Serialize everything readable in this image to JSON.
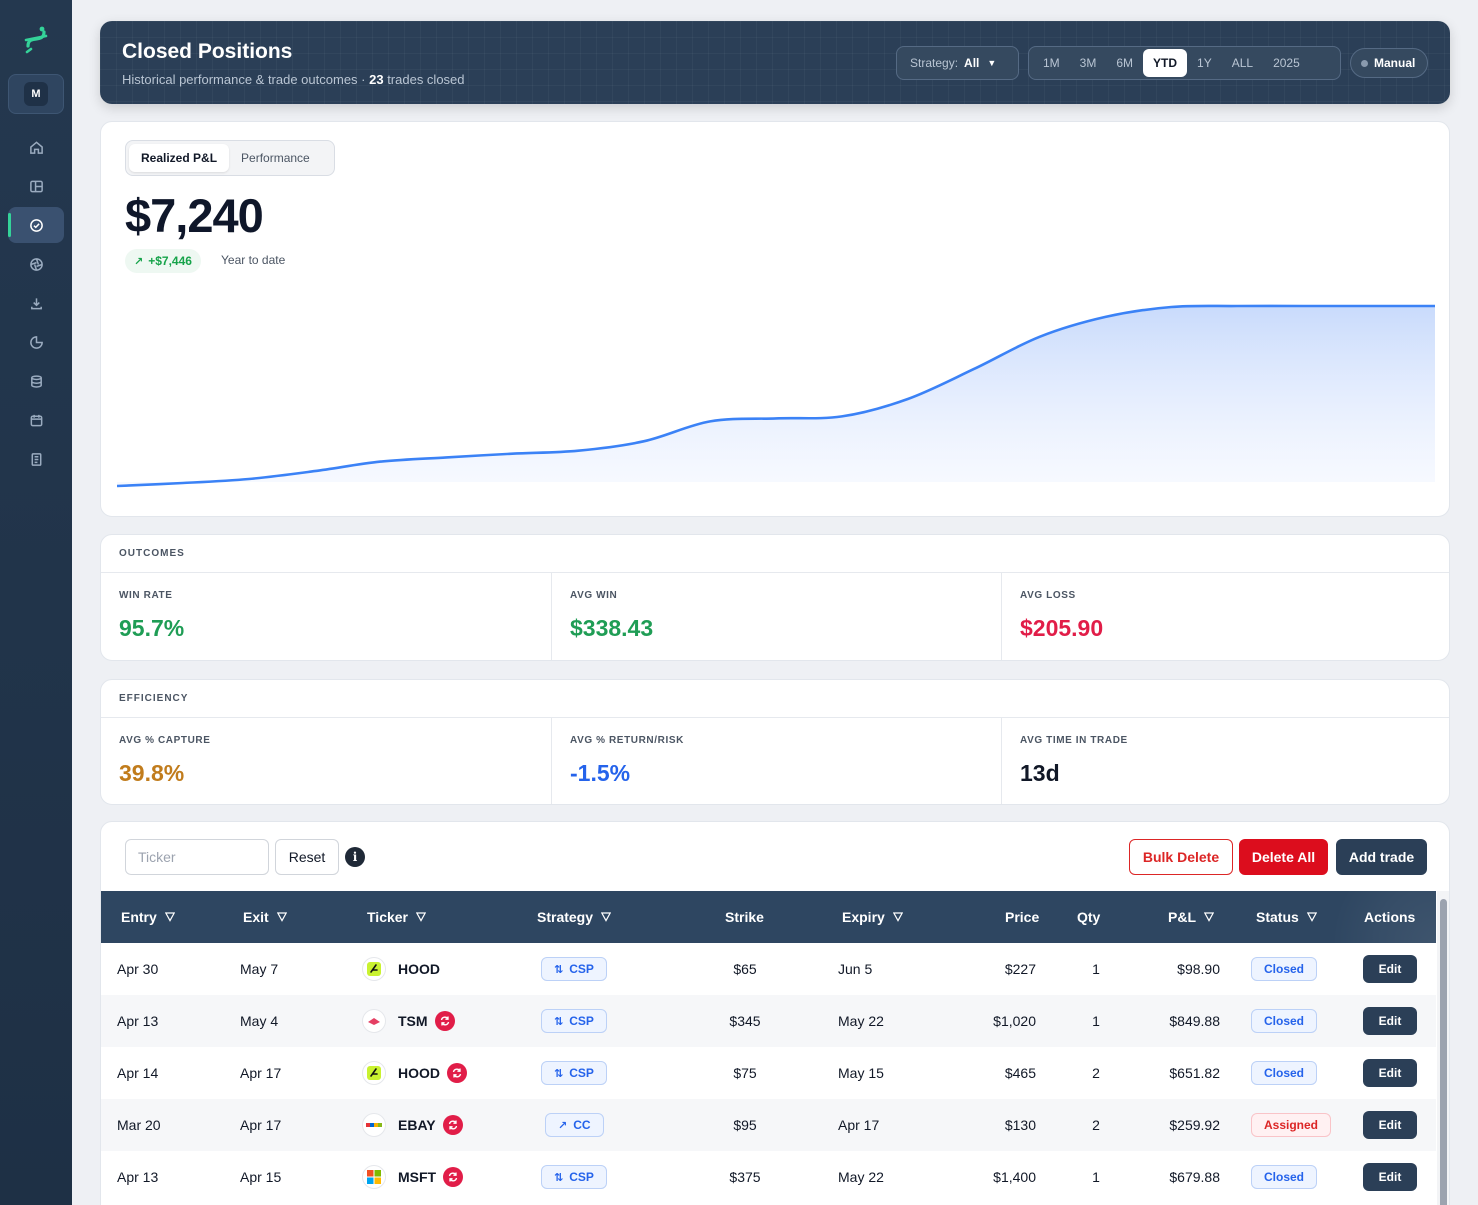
{
  "header": {
    "title": "Closed Positions",
    "subtitle_prefix": "Historical performance & trade outcomes · ",
    "trades_count": "23",
    "subtitle_suffix": " trades closed",
    "strategy_label": "Strategy:",
    "strategy_value": "All",
    "ranges": [
      "1M",
      "3M",
      "6M",
      "YTD",
      "1Y",
      "ALL",
      "2025"
    ],
    "active_range": "YTD",
    "manual_label": "Manual"
  },
  "chart_card": {
    "tabs": [
      "Realized P&L",
      "Performance"
    ],
    "active_tab": "Realized P&L",
    "value": "$7,240",
    "delta": "+$7,446",
    "period_label": "Year to date"
  },
  "chart_data": {
    "type": "area",
    "x": [
      0,
      5,
      10,
      15,
      20,
      25,
      30,
      35,
      40,
      45,
      50,
      55,
      60,
      65,
      70,
      75,
      80,
      85,
      90,
      95,
      100
    ],
    "values": [
      0,
      120,
      280,
      600,
      980,
      1150,
      1300,
      1420,
      1800,
      2600,
      2720,
      2800,
      3500,
      4700,
      6000,
      6800,
      7200,
      7240,
      7240,
      7240,
      7240
    ],
    "ylim": [
      0,
      7240
    ],
    "grid": false,
    "color": "#3b82f6"
  },
  "outcomes": {
    "title": "OUTCOMES",
    "metrics": [
      {
        "label": "WIN RATE",
        "value": "95.7%",
        "color": "#1f9d55"
      },
      {
        "label": "AVG WIN",
        "value": "$338.43",
        "color": "#1f9d55"
      },
      {
        "label": "AVG LOSS",
        "value": "$205.90",
        "color": "#e11d48"
      }
    ]
  },
  "efficiency": {
    "title": "EFFICIENCY",
    "metrics": [
      {
        "label": "AVG % CAPTURE",
        "value": "39.8%",
        "color": "#c17c1c"
      },
      {
        "label": "AVG % RETURN/RISK",
        "value": "-1.5%",
        "color": "#2563eb"
      },
      {
        "label": "AVG TIME IN TRADE",
        "value": "13d",
        "color": "#111827"
      }
    ]
  },
  "toolbar": {
    "ticker_placeholder": "Ticker",
    "reset_label": "Reset",
    "info_label": "i",
    "bulk_delete_label": "Bulk Delete",
    "delete_all_label": "Delete All",
    "add_trade_label": "Add trade"
  },
  "table": {
    "columns": [
      "Entry",
      "Exit",
      "Ticker",
      "Strategy",
      "Strike",
      "Expiry",
      "Price",
      "Qty",
      "P&L",
      "Status",
      "Actions"
    ],
    "rows": [
      {
        "entry": "Apr 30",
        "exit": "May 7",
        "ticker": "HOOD",
        "logo": "hood-logo",
        "rolled": false,
        "strategy": "CSP",
        "strike": "$65",
        "expiry": "Jun 5",
        "price": "$227",
        "qty": "1",
        "pnl": "$98.90",
        "status": "Closed",
        "action": "Edit"
      },
      {
        "entry": "Apr 13",
        "exit": "May 4",
        "ticker": "TSM",
        "logo": "tsm-logo",
        "rolled": true,
        "strategy": "CSP",
        "strike": "$345",
        "expiry": "May 22",
        "price": "$1,020",
        "qty": "1",
        "pnl": "$849.88",
        "status": "Closed",
        "action": "Edit"
      },
      {
        "entry": "Apr 14",
        "exit": "Apr 17",
        "ticker": "HOOD",
        "logo": "hood-logo",
        "rolled": true,
        "strategy": "CSP",
        "strike": "$75",
        "expiry": "May 15",
        "price": "$465",
        "qty": "2",
        "pnl": "$651.82",
        "status": "Closed",
        "action": "Edit"
      },
      {
        "entry": "Mar 20",
        "exit": "Apr 17",
        "ticker": "EBAY",
        "logo": "ebay-logo",
        "rolled": true,
        "strategy": "CC",
        "strike": "$95",
        "expiry": "Apr 17",
        "price": "$130",
        "qty": "2",
        "pnl": "$259.92",
        "status": "Assigned",
        "action": "Edit"
      },
      {
        "entry": "Apr 13",
        "exit": "Apr 15",
        "ticker": "MSFT",
        "logo": "msft-logo",
        "rolled": true,
        "strategy": "CSP",
        "strike": "$375",
        "expiry": "May 22",
        "price": "$1,400",
        "qty": "1",
        "pnl": "$679.88",
        "status": "Closed",
        "action": "Edit"
      }
    ]
  },
  "sidebar": {
    "avatar_initial": "M",
    "items": [
      {
        "icon": "home-icon"
      },
      {
        "icon": "dashboard-icon"
      },
      {
        "icon": "check-circle-icon",
        "active": true
      },
      {
        "icon": "aperture-icon"
      },
      {
        "icon": "download-icon"
      },
      {
        "icon": "pie-chart-icon"
      },
      {
        "icon": "database-icon"
      },
      {
        "icon": "calendar-icon"
      },
      {
        "icon": "notebook-icon"
      }
    ]
  }
}
